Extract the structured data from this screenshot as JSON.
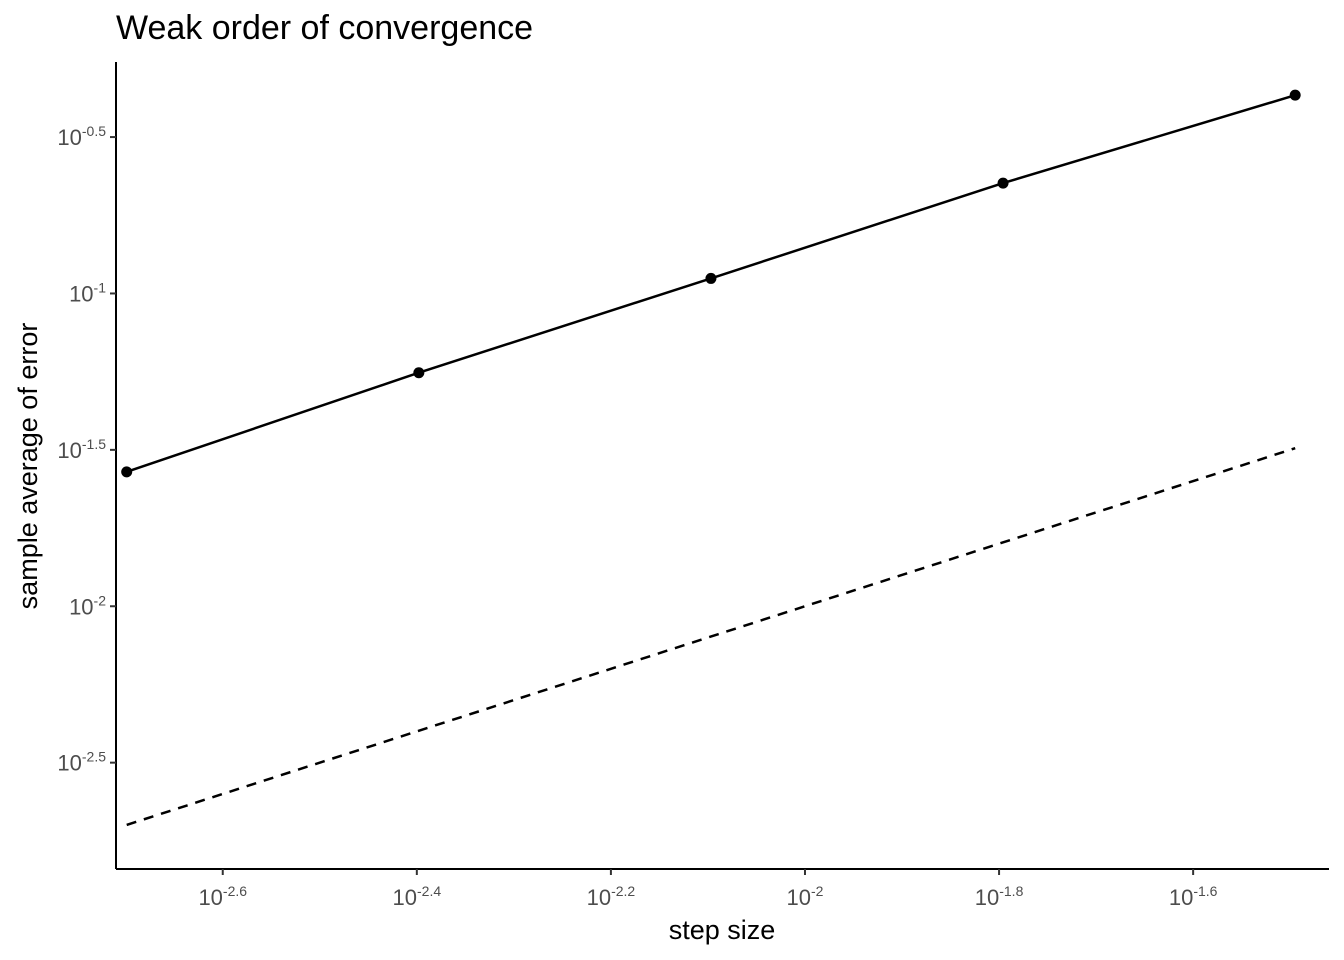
{
  "chart_data": {
    "type": "line",
    "title": "Weak order of convergence",
    "xlabel": "step size",
    "ylabel": "sample average of error",
    "x_scale": "log10",
    "y_scale": "log10",
    "xlim_log10": [
      -2.71,
      -1.46
    ],
    "ylim_log10": [
      -2.84,
      -0.26
    ],
    "x_ticks": [
      {
        "base": "10",
        "exp": "-2.6",
        "log10": -2.6
      },
      {
        "base": "10",
        "exp": "-2.4",
        "log10": -2.4
      },
      {
        "base": "10",
        "exp": "-2.2",
        "log10": -2.2
      },
      {
        "base": "10",
        "exp": "-2",
        "log10": -2.0
      },
      {
        "base": "10",
        "exp": "-1.8",
        "log10": -1.8
      },
      {
        "base": "10",
        "exp": "-1.6",
        "log10": -1.6
      }
    ],
    "y_ticks": [
      {
        "base": "10",
        "exp": "-0.5",
        "log10": -0.5
      },
      {
        "base": "10",
        "exp": "-1",
        "log10": -1.0
      },
      {
        "base": "10",
        "exp": "-1.5",
        "log10": -1.5
      },
      {
        "base": "10",
        "exp": "-2",
        "log10": -2.0
      },
      {
        "base": "10",
        "exp": "-2.5",
        "log10": -2.5
      }
    ],
    "series": [
      {
        "style": "solid-with-points",
        "color": "#000000",
        "x": [
          0.002,
          0.004,
          0.008,
          0.016,
          0.032
        ],
        "y": [
          0.0269,
          0.0558,
          0.1117,
          0.2253,
          0.4305
        ]
      },
      {
        "style": "dashed",
        "color": "#000000",
        "x": [
          0.002,
          0.032
        ],
        "y": [
          0.002,
          0.032
        ]
      }
    ],
    "grid": false,
    "legend": "none"
  }
}
